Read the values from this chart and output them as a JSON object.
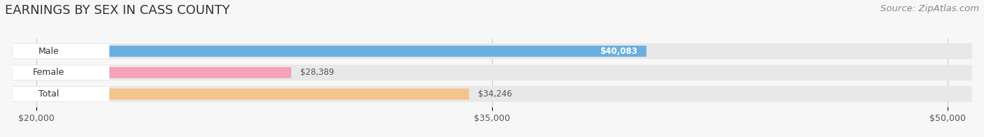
{
  "title": "EARNINGS BY SEX IN CASS COUNTY",
  "source": "Source: ZipAtlas.com",
  "categories": [
    "Male",
    "Female",
    "Total"
  ],
  "values": [
    40083,
    28389,
    34246
  ],
  "bar_colors": [
    "#6aafe0",
    "#f4a3b8",
    "#f5c48a"
  ],
  "value_labels": [
    "$40,083",
    "$28,389",
    "$34,246"
  ],
  "value_label_inside": [
    true,
    false,
    false
  ],
  "xmin": 20000,
  "xmax": 50000,
  "xticks": [
    20000,
    35000,
    50000
  ],
  "xtick_labels": [
    "$20,000",
    "$35,000",
    "$50,000"
  ],
  "background_color": "#f7f7f7",
  "bar_bg_color": "#e8e8e8",
  "title_fontsize": 13,
  "source_fontsize": 9.5,
  "bar_height": 0.52,
  "figsize": [
    14.06,
    1.96
  ],
  "dpi": 100
}
